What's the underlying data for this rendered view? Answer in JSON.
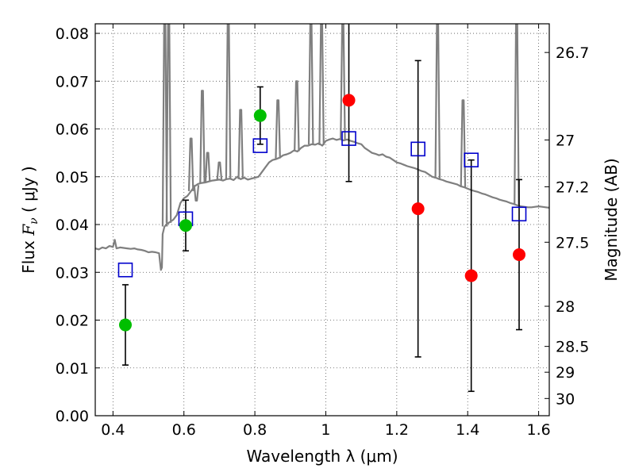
{
  "chart_data": {
    "type": "scatter",
    "xlabel": "Wavelength  λ (μm)",
    "ylabel_prefix": "Flux  ",
    "ylabel_symbol": "F",
    "ylabel_sub": "ν",
    "ylabel_suffix": "  ( μJy )",
    "y2label": "Magnitude (AB)",
    "xlim": [
      0.35,
      1.63
    ],
    "ylim": [
      0.0,
      0.082
    ],
    "grid": true,
    "x_ticks": [
      {
        "value": 0.4,
        "label": "0.4"
      },
      {
        "value": 0.6,
        "label": "0.6"
      },
      {
        "value": 0.8,
        "label": "0.8"
      },
      {
        "value": 1.0,
        "label": "1"
      },
      {
        "value": 1.2,
        "label": "1.2"
      },
      {
        "value": 1.4,
        "label": "1.4"
      },
      {
        "value": 1.6,
        "label": "1.6"
      }
    ],
    "y_ticks": [
      {
        "value": 0.0,
        "label": "0.00"
      },
      {
        "value": 0.01,
        "label": "0.01"
      },
      {
        "value": 0.02,
        "label": "0.02"
      },
      {
        "value": 0.03,
        "label": "0.03"
      },
      {
        "value": 0.04,
        "label": "0.04"
      },
      {
        "value": 0.05,
        "label": "0.05"
      },
      {
        "value": 0.06,
        "label": "0.06"
      },
      {
        "value": 0.07,
        "label": "0.07"
      },
      {
        "value": 0.08,
        "label": "0.08"
      }
    ],
    "y2_ticks": [
      {
        "flux": 0.076,
        "label": "26.7"
      },
      {
        "flux": 0.0577,
        "label": "27"
      },
      {
        "flux": 0.0479,
        "label": "27.2"
      },
      {
        "flux": 0.0363,
        "label": "27.5"
      },
      {
        "flux": 0.0229,
        "label": "28"
      },
      {
        "flux": 0.0145,
        "label": "28.5"
      },
      {
        "flux": 0.0091,
        "label": "29"
      },
      {
        "flux": 0.0036,
        "label": "30"
      }
    ],
    "colors": {
      "spectrum": "#7f7f7f",
      "observed_blue": "#00bf00",
      "observed_ir": "#ff0000",
      "model": "#0000cc",
      "errorbar": "#000000",
      "grid": "#555555"
    },
    "series": [
      {
        "kind": "spectrum",
        "x": [
          0.35,
          0.36,
          0.37,
          0.38,
          0.39,
          0.4,
          0.405,
          0.41,
          0.42,
          0.43,
          0.44,
          0.45,
          0.46,
          0.47,
          0.48,
          0.49,
          0.5,
          0.51,
          0.52,
          0.53,
          0.535,
          0.538,
          0.54,
          0.545,
          0.55,
          0.56,
          0.57,
          0.58,
          0.59,
          0.6,
          0.61,
          0.62,
          0.63,
          0.64,
          0.65,
          0.66,
          0.67,
          0.68,
          0.69,
          0.7,
          0.71,
          0.72,
          0.73,
          0.74,
          0.75,
          0.76,
          0.77,
          0.78,
          0.79,
          0.8,
          0.81,
          0.82,
          0.83,
          0.84,
          0.85,
          0.86,
          0.87,
          0.88,
          0.89,
          0.9,
          0.91,
          0.92,
          0.93,
          0.94,
          0.95,
          0.96,
          0.97,
          0.98,
          0.99,
          1.0,
          1.01,
          1.02,
          1.03,
          1.04,
          1.05,
          1.06,
          1.07,
          1.08,
          1.09,
          1.1,
          1.11,
          1.12,
          1.13,
          1.14,
          1.15,
          1.16,
          1.17,
          1.18,
          1.19,
          1.2,
          1.21,
          1.22,
          1.23,
          1.24,
          1.25,
          1.26,
          1.27,
          1.28,
          1.29,
          1.3,
          1.31,
          1.32,
          1.33,
          1.34,
          1.35,
          1.36,
          1.37,
          1.38,
          1.39,
          1.4,
          1.41,
          1.42,
          1.43,
          1.44,
          1.45,
          1.46,
          1.47,
          1.48,
          1.49,
          1.5,
          1.51,
          1.52,
          1.53,
          1.54,
          1.55,
          1.56,
          1.57,
          1.58,
          1.59,
          1.6,
          1.61,
          1.62,
          1.63
        ],
        "y": [
          0.035,
          0.0348,
          0.0352,
          0.035,
          0.0355,
          0.0353,
          0.0368,
          0.035,
          0.0352,
          0.0351,
          0.035,
          0.0349,
          0.035,
          0.0348,
          0.0347,
          0.0345,
          0.0342,
          0.0343,
          0.0342,
          0.034,
          0.0305,
          0.031,
          0.038,
          0.0395,
          0.04,
          0.0405,
          0.041,
          0.042,
          0.0445,
          0.0455,
          0.046,
          0.047,
          0.048,
          0.0485,
          0.0487,
          0.0488,
          0.049,
          0.0492,
          0.0493,
          0.0494,
          0.0492,
          0.0495,
          0.0496,
          0.0493,
          0.05,
          0.0495,
          0.0498,
          0.0494,
          0.0496,
          0.0498,
          0.05,
          0.051,
          0.052,
          0.053,
          0.0535,
          0.0537,
          0.054,
          0.0545,
          0.0547,
          0.055,
          0.0555,
          0.0553,
          0.056,
          0.0565,
          0.0565,
          0.0568,
          0.0567,
          0.057,
          0.0565,
          0.0575,
          0.0578,
          0.058,
          0.0577,
          0.0579,
          0.0576,
          0.0578,
          0.0575,
          0.0573,
          0.057,
          0.0568,
          0.056,
          0.0555,
          0.055,
          0.0548,
          0.0545,
          0.0547,
          0.0542,
          0.054,
          0.0535,
          0.053,
          0.0528,
          0.0525,
          0.0522,
          0.052,
          0.0518,
          0.0515,
          0.0512,
          0.051,
          0.0505,
          0.05,
          0.0498,
          0.0495,
          0.0493,
          0.049,
          0.0488,
          0.0486,
          0.0484,
          0.048,
          0.0478,
          0.0475,
          0.0472,
          0.047,
          0.0468,
          0.0465,
          0.0463,
          0.046,
          0.0457,
          0.0455,
          0.0452,
          0.045,
          0.0448,
          0.0445,
          0.0443,
          0.044,
          0.0438,
          0.0437,
          0.0436,
          0.0436,
          0.0437,
          0.0438,
          0.0437,
          0.0436,
          0.0435
        ]
      },
      {
        "kind": "emission-lines",
        "lines": [
          {
            "x": 0.546,
            "peak": 0.082
          },
          {
            "x": 0.557,
            "peak": 0.082
          },
          {
            "x": 0.62,
            "peak": 0.058
          },
          {
            "x": 0.635,
            "peak": 0.045
          },
          {
            "x": 0.652,
            "peak": 0.068
          },
          {
            "x": 0.667,
            "peak": 0.055
          },
          {
            "x": 0.7,
            "peak": 0.053
          },
          {
            "x": 0.725,
            "peak": 0.082
          },
          {
            "x": 0.76,
            "peak": 0.064
          },
          {
            "x": 0.865,
            "peak": 0.066
          },
          {
            "x": 0.918,
            "peak": 0.07
          },
          {
            "x": 0.958,
            "peak": 0.082
          },
          {
            "x": 0.988,
            "peak": 0.082
          },
          {
            "x": 1.048,
            "peak": 0.082
          },
          {
            "x": 1.315,
            "peak": 0.082
          },
          {
            "x": 1.387,
            "peak": 0.066
          },
          {
            "x": 1.538,
            "peak": 0.082
          }
        ]
      },
      {
        "kind": "observed",
        "color": "observed_blue",
        "x": [
          0.435,
          0.605,
          0.815
        ],
        "y": [
          0.019,
          0.0398,
          0.0628
        ],
        "err": [
          0.0084,
          0.0053,
          0.006
        ]
      },
      {
        "kind": "observed",
        "color": "observed_ir",
        "x": [
          1.065,
          1.26,
          1.41,
          1.545
        ],
        "y": [
          0.066,
          0.0433,
          0.0293,
          0.0337
        ],
        "err": [
          0.017,
          0.031,
          0.0242,
          0.0157
        ]
      },
      {
        "kind": "model",
        "x": [
          0.435,
          0.605,
          0.815,
          1.065,
          1.26,
          1.41,
          1.545
        ],
        "y": [
          0.0305,
          0.0412,
          0.0565,
          0.058,
          0.0558,
          0.0535,
          0.0422
        ]
      }
    ]
  }
}
